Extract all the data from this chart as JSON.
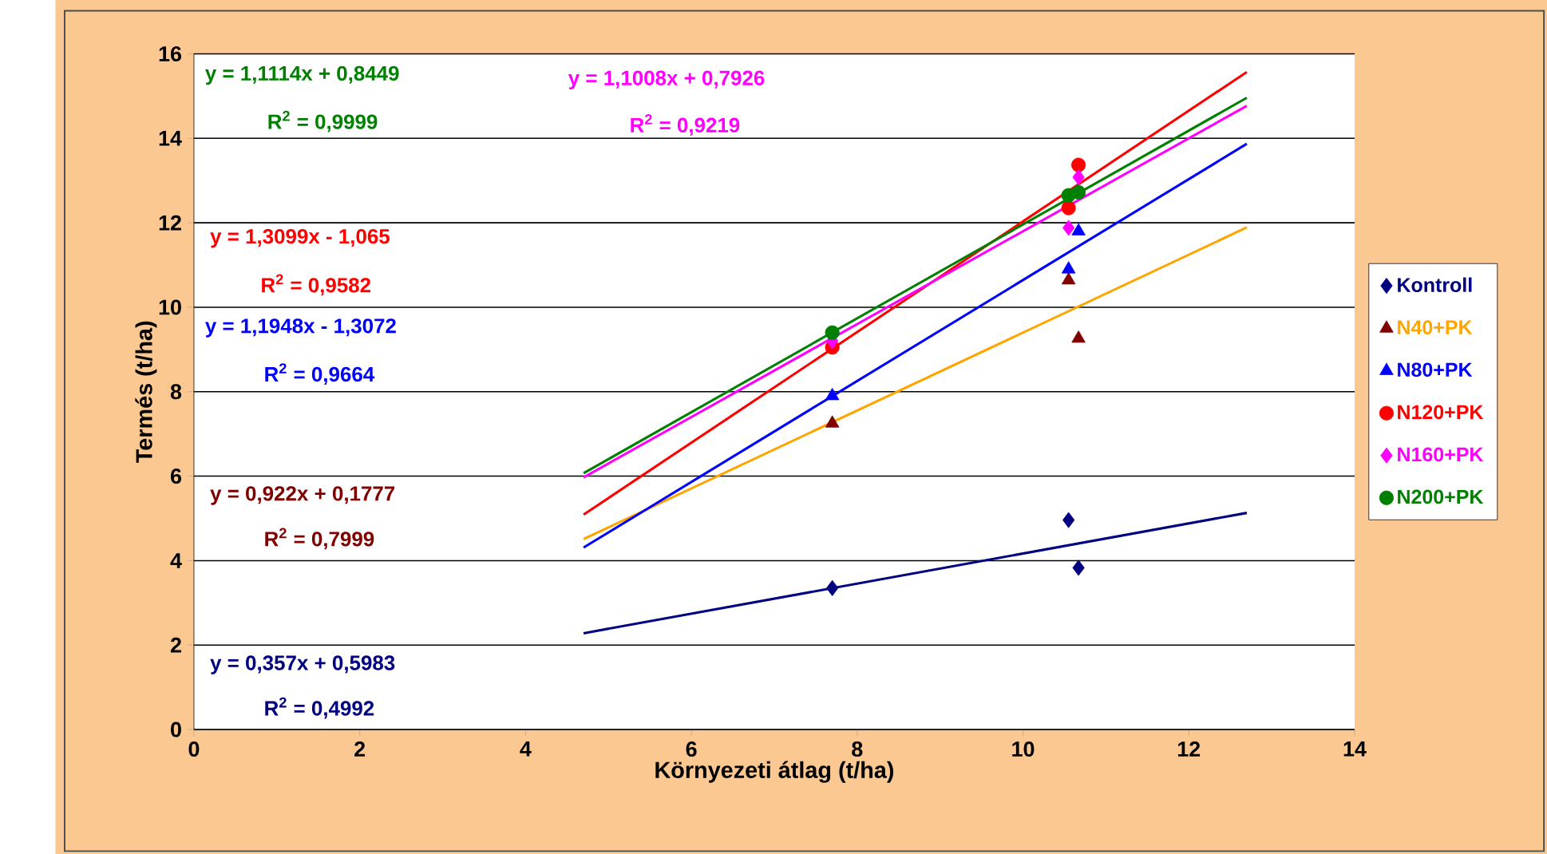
{
  "chart_data": {
    "type": "scatter",
    "xlabel": "Környezeti átlag (t/ha)",
    "ylabel": "Termés (t/ha)",
    "xlim": [
      0,
      14
    ],
    "ylim": [
      0,
      16
    ],
    "xticks": [
      0,
      2,
      4,
      6,
      8,
      10,
      12,
      14
    ],
    "yticks": [
      0,
      2,
      4,
      6,
      8,
      10,
      12,
      14,
      16
    ],
    "grid": "y",
    "legend": "right",
    "series": [
      {
        "name": "Kontroll",
        "color": "#000080",
        "marker": "diamond",
        "x": [
          7.7,
          10.55,
          10.67
        ],
        "values": [
          3.35,
          4.96,
          3.83
        ]
      },
      {
        "name": "N40+PK",
        "color": "#800000",
        "marker": "triangle",
        "x": [
          7.7,
          10.55,
          10.67
        ],
        "values": [
          7.25,
          10.64,
          9.26
        ]
      },
      {
        "name": "N80+PK",
        "color": "#0000ff",
        "marker": "triangle",
        "x": [
          7.7,
          10.55,
          10.67
        ],
        "values": [
          7.9,
          10.9,
          11.8
        ]
      },
      {
        "name": "N120+PK",
        "color": "#ff0000",
        "marker": "circle",
        "x": [
          7.7,
          10.55,
          10.67
        ],
        "values": [
          9.05,
          12.35,
          13.37
        ]
      },
      {
        "name": "N160+PK",
        "color": "#ff00ff",
        "marker": "diamond",
        "x": [
          7.7,
          10.55,
          10.67
        ],
        "values": [
          9.2,
          11.88,
          13.08
        ]
      },
      {
        "name": "N200+PK",
        "color": "#008000",
        "marker": "circle",
        "x": [
          7.7,
          10.55,
          10.67
        ],
        "values": [
          9.4,
          12.65,
          12.72
        ]
      },
      {
        "type": "line",
        "color": "#000080",
        "x": [
          4.7,
          12.7
        ],
        "values": [
          2.28,
          5.13
        ]
      },
      {
        "type": "line",
        "color": "#ffa500",
        "x": [
          4.7,
          12.7
        ],
        "values": [
          4.51,
          11.89
        ]
      },
      {
        "type": "line",
        "color": "#0000ff",
        "x": [
          4.7,
          12.7
        ],
        "values": [
          4.31,
          13.87
        ]
      },
      {
        "type": "line",
        "color": "#ff0000",
        "x": [
          4.7,
          12.7
        ],
        "values": [
          5.09,
          15.57
        ]
      },
      {
        "type": "line",
        "color": "#ff00ff",
        "x": [
          4.7,
          12.7
        ],
        "values": [
          5.97,
          14.77
        ]
      },
      {
        "type": "line",
        "color": "#008000",
        "x": [
          4.7,
          12.7
        ],
        "values": [
          6.07,
          14.96
        ]
      }
    ],
    "annotations": [
      "y = 0,357x + 0,5983",
      "R$^{2}$ = 0,4992",
      "y = 0,922x + 0,1777",
      "R$^{2}$ = 0,7999",
      "y = 1,1948x - 1,3072",
      "R$^{2}$ = 0,9664",
      "y = 1,3099x - 1,065",
      "R$^{2}$ = 0,9582",
      "y = 1,1008x + 0,7926",
      "R$^{2}$ = 0,9219",
      "y = 1,1114x + 0,8449",
      "R$^{2}$ = 0,9999"
    ]
  }
}
